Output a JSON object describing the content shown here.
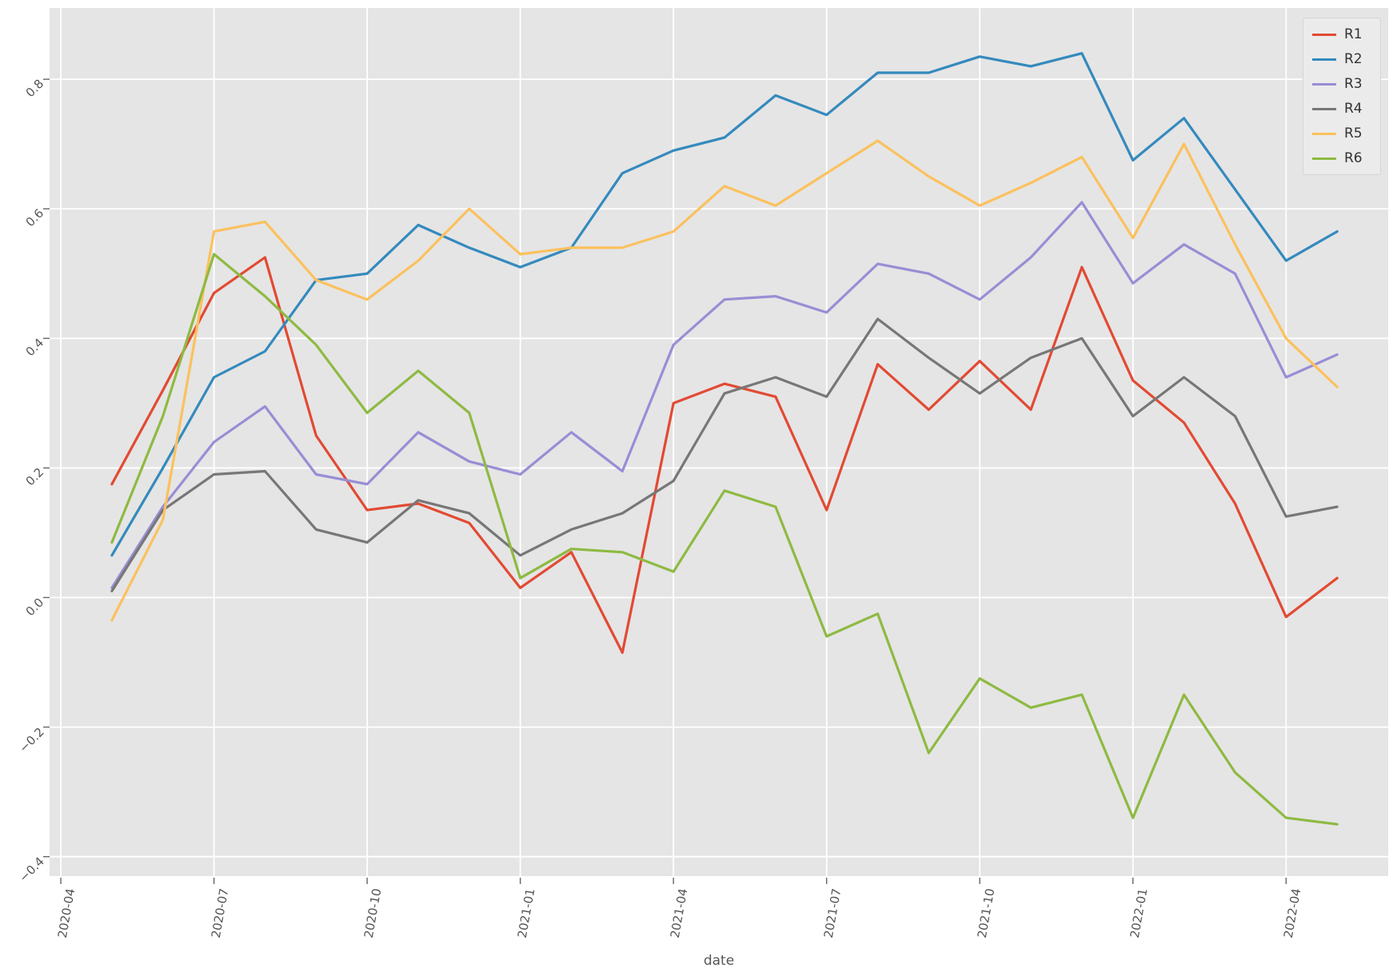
{
  "chart_data": {
    "type": "line",
    "title": "",
    "xlabel": "date",
    "ylabel": "",
    "grid": true,
    "legend_position": "upper right",
    "x_dates": [
      "2020-05",
      "2020-06",
      "2020-07",
      "2020-08",
      "2020-09",
      "2020-10",
      "2020-11",
      "2020-12",
      "2021-01",
      "2021-02",
      "2021-03",
      "2021-04",
      "2021-05",
      "2021-06",
      "2021-07",
      "2021-08",
      "2021-09",
      "2021-10",
      "2021-11",
      "2021-12",
      "2022-01",
      "2022-02",
      "2022-03",
      "2022-04",
      "2022-05"
    ],
    "series": [
      {
        "name": "R1",
        "color": "#E24A33",
        "values": [
          0.175,
          0.32,
          0.47,
          0.525,
          0.25,
          0.135,
          0.145,
          0.115,
          0.015,
          0.07,
          -0.085,
          0.3,
          0.33,
          0.31,
          0.135,
          0.36,
          0.29,
          0.365,
          0.29,
          0.51,
          0.335,
          0.27,
          0.145,
          -0.03,
          0.03
        ]
      },
      {
        "name": "R2",
        "color": "#348ABD",
        "values": [
          0.065,
          0.2,
          0.34,
          0.38,
          0.49,
          0.5,
          0.575,
          0.54,
          0.51,
          0.54,
          0.655,
          0.69,
          0.71,
          0.775,
          0.745,
          0.81,
          0.81,
          0.835,
          0.82,
          0.84,
          0.675,
          0.74,
          0.63,
          0.52,
          0.565
        ]
      },
      {
        "name": "R3",
        "color": "#988ED5",
        "values": [
          0.015,
          0.14,
          0.24,
          0.295,
          0.19,
          0.175,
          0.255,
          0.21,
          0.19,
          0.255,
          0.195,
          0.39,
          0.46,
          0.465,
          0.44,
          0.515,
          0.5,
          0.46,
          0.525,
          0.61,
          0.485,
          0.545,
          0.5,
          0.34,
          0.375
        ]
      },
      {
        "name": "R4",
        "color": "#777777",
        "values": [
          0.01,
          0.135,
          0.19,
          0.195,
          0.105,
          0.085,
          0.15,
          0.13,
          0.065,
          0.105,
          0.13,
          0.18,
          0.315,
          0.34,
          0.31,
          0.43,
          0.37,
          0.315,
          0.37,
          0.4,
          0.28,
          0.34,
          0.28,
          0.125,
          0.14
        ]
      },
      {
        "name": "R5",
        "color": "#FBC15E",
        "values": [
          -0.035,
          0.12,
          0.565,
          0.58,
          0.49,
          0.46,
          0.52,
          0.6,
          0.53,
          0.54,
          0.54,
          0.565,
          0.635,
          0.605,
          0.655,
          0.705,
          0.65,
          0.605,
          0.64,
          0.68,
          0.555,
          0.7,
          0.545,
          0.4,
          0.325
        ]
      },
      {
        "name": "R6",
        "color": "#8EBA42",
        "values": [
          0.085,
          0.28,
          0.53,
          0.465,
          0.39,
          0.285,
          0.35,
          0.285,
          0.03,
          0.075,
          0.07,
          0.04,
          0.165,
          0.14,
          -0.06,
          -0.025,
          -0.24,
          -0.125,
          -0.17,
          -0.15,
          -0.34,
          -0.15,
          -0.27,
          -0.34,
          -0.35
        ]
      }
    ],
    "xticks": [
      {
        "month": 0,
        "label": "2020-04"
      },
      {
        "month": 3,
        "label": "2020-07"
      },
      {
        "month": 6,
        "label": "2020-10"
      },
      {
        "month": 9,
        "label": "2021-01"
      },
      {
        "month": 12,
        "label": "2021-04"
      },
      {
        "month": 15,
        "label": "2021-07"
      },
      {
        "month": 18,
        "label": "2021-10"
      },
      {
        "month": 21,
        "label": "2022-01"
      },
      {
        "month": 24,
        "label": "2022-04"
      }
    ],
    "yticks": [
      {
        "value": -0.4,
        "label": "−0.4"
      },
      {
        "value": -0.2,
        "label": "−0.2"
      },
      {
        "value": 0.0,
        "label": "0.0"
      },
      {
        "value": 0.2,
        "label": "0.2"
      },
      {
        "value": 0.4,
        "label": "0.4"
      },
      {
        "value": 0.6,
        "label": "0.6"
      },
      {
        "value": 0.8,
        "label": "0.8"
      }
    ],
    "xlim_months_from_2020_04": [
      -0.22,
      26.0
    ],
    "ylim": [
      -0.43,
      0.91
    ],
    "style": {
      "plot_bg": "#E5E5E5",
      "grid_color": "#FFFFFF",
      "tick_color": "#666666",
      "label_color": "#555555",
      "legend_bg": "#EBEBEB",
      "legend_border": "#D5D5D5"
    }
  }
}
